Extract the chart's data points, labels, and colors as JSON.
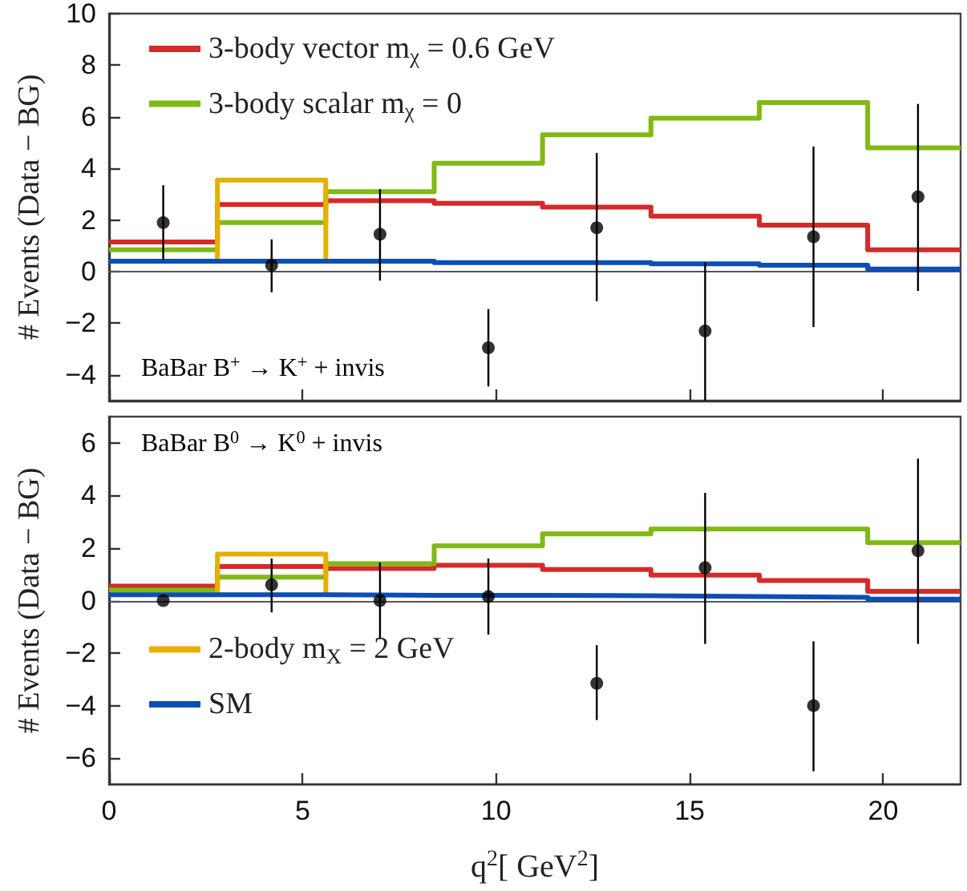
{
  "chart_data": [
    {
      "type": "step",
      "ylabel": "# Events (Data − BG)",
      "xlim": [
        0,
        22
      ],
      "xticks": [
        0,
        5,
        10,
        15,
        20
      ],
      "ylim": [
        -5,
        10
      ],
      "yticks": [
        -4,
        -2,
        0,
        2,
        4,
        6,
        8,
        10
      ],
      "tick_labels": "y",
      "legend": "top left",
      "annotations": [
        "BaBar B$^{+}$ → K$^{+}$ + invis"
      ],
      "ref_lines": [
        {
          "axis": "y",
          "value": 0,
          "color": "#555555"
        }
      ],
      "series": [
        {
          "name": "3-body vector m$_{χ}$ = 0.6 GeV",
          "color": "#d62a2a",
          "x": [
            0,
            2.8,
            5.6,
            8.4,
            11.2,
            14,
            16.8,
            19.6,
            22
          ],
          "values": [
            1.15,
            2.6,
            2.75,
            2.65,
            2.5,
            2.15,
            1.8,
            0.85,
            0.85
          ]
        },
        {
          "name": "3-body scalar m$_{χ}$ = 0",
          "color": "#80b914",
          "x": [
            0,
            2.8,
            5.6,
            8.4,
            11.2,
            14,
            16.8,
            19.6,
            22
          ],
          "values": [
            0.85,
            1.9,
            3.1,
            4.2,
            5.3,
            5.95,
            6.55,
            4.8,
            4.8
          ]
        },
        {
          "type": "line",
          "color": "#e6b000",
          "x": [
            2.8,
            2.8,
            5.6,
            5.6
          ],
          "values": [
            0.4,
            3.55,
            3.55,
            0.4
          ]
        },
        {
          "color": "#0b4fb5",
          "x": [
            0,
            2.8,
            5.6,
            8.4,
            11.2,
            14,
            16.8,
            19.6,
            22
          ],
          "values": [
            0.4,
            0.4,
            0.4,
            0.35,
            0.35,
            0.3,
            0.25,
            0.1,
            0.1
          ]
        },
        {
          "type": "scatter",
          "color": "#000000",
          "marker": "circle",
          "x": [
            1.4,
            4.2,
            7.0,
            9.8,
            12.6,
            15.4,
            18.2,
            20.9
          ],
          "values": [
            1.9,
            0.25,
            1.45,
            -2.95,
            1.7,
            -2.3,
            1.35,
            2.9
          ],
          "errors": [
            [
              0.45,
              3.35
            ],
            [
              -0.8,
              1.25
            ],
            [
              -0.35,
              3.2
            ],
            [
              -4.45,
              -1.45
            ],
            [
              -1.15,
              4.6
            ],
            [
              -5,
              0.35
            ],
            [
              -2.15,
              4.85
            ],
            [
              -0.75,
              6.5
            ]
          ]
        }
      ]
    },
    {
      "type": "step",
      "ylabel": "# Events (Data − BG)",
      "xlabel": "q$^{2}$[ GeV$^{2}$]",
      "xlim": [
        0,
        22
      ],
      "xticks": [
        0,
        5,
        10,
        15,
        20
      ],
      "ylim": [
        -7,
        7
      ],
      "yticks": [
        -6,
        -4,
        -2,
        0,
        2,
        4,
        6
      ],
      "legend": "bottom left",
      "annotations": [
        "BaBar B$^{0}$ → K$^{0}$ + invis"
      ],
      "ref_lines": [
        {
          "axis": "y",
          "value": 0,
          "color": "#555555"
        }
      ],
      "series": [
        {
          "color": "#d62a2a",
          "x": [
            0,
            2.8,
            5.6,
            8.4,
            11.2,
            14,
            16.8,
            19.6,
            22
          ],
          "values": [
            0.55,
            1.3,
            1.22,
            1.34,
            1.18,
            0.97,
            0.76,
            0.35,
            0.35
          ]
        },
        {
          "color": "#80b914",
          "x": [
            0,
            2.8,
            5.6,
            8.4,
            11.2,
            14,
            16.8,
            19.6,
            22
          ],
          "values": [
            0.4,
            0.89,
            1.4,
            2.08,
            2.54,
            2.72,
            2.72,
            2.2,
            2.2
          ]
        },
        {
          "name": "2-body m$_{X}$ = 2 GeV",
          "type": "line",
          "color": "#e6b000",
          "x": [
            2.8,
            2.8,
            5.6,
            5.6
          ],
          "values": [
            0.2,
            1.77,
            1.77,
            0.2
          ]
        },
        {
          "name": "SM",
          "color": "#0b4fb5",
          "x": [
            0,
            2.8,
            5.6,
            8.4,
            11.2,
            14,
            16.8,
            19.6,
            22
          ],
          "values": [
            0.22,
            0.22,
            0.2,
            0.2,
            0.18,
            0.15,
            0.12,
            0.05,
            0.05
          ]
        },
        {
          "type": "scatter",
          "color": "#000000",
          "marker": "circle",
          "x": [
            1.4,
            4.2,
            7.0,
            9.8,
            12.6,
            15.4,
            18.2,
            20.9
          ],
          "values": [
            0.0,
            0.6,
            0.0,
            0.15,
            -3.15,
            1.25,
            -4.0,
            1.9
          ],
          "errors": [
            null,
            [
              -0.45,
              1.6
            ],
            [
              -1.45,
              1.45
            ],
            [
              -1.3,
              1.6
            ],
            [
              -4.55,
              -1.7
            ],
            [
              -1.65,
              4.1
            ],
            [
              -6.5,
              -1.55
            ],
            [
              -1.65,
              5.4
            ]
          ]
        }
      ]
    }
  ]
}
